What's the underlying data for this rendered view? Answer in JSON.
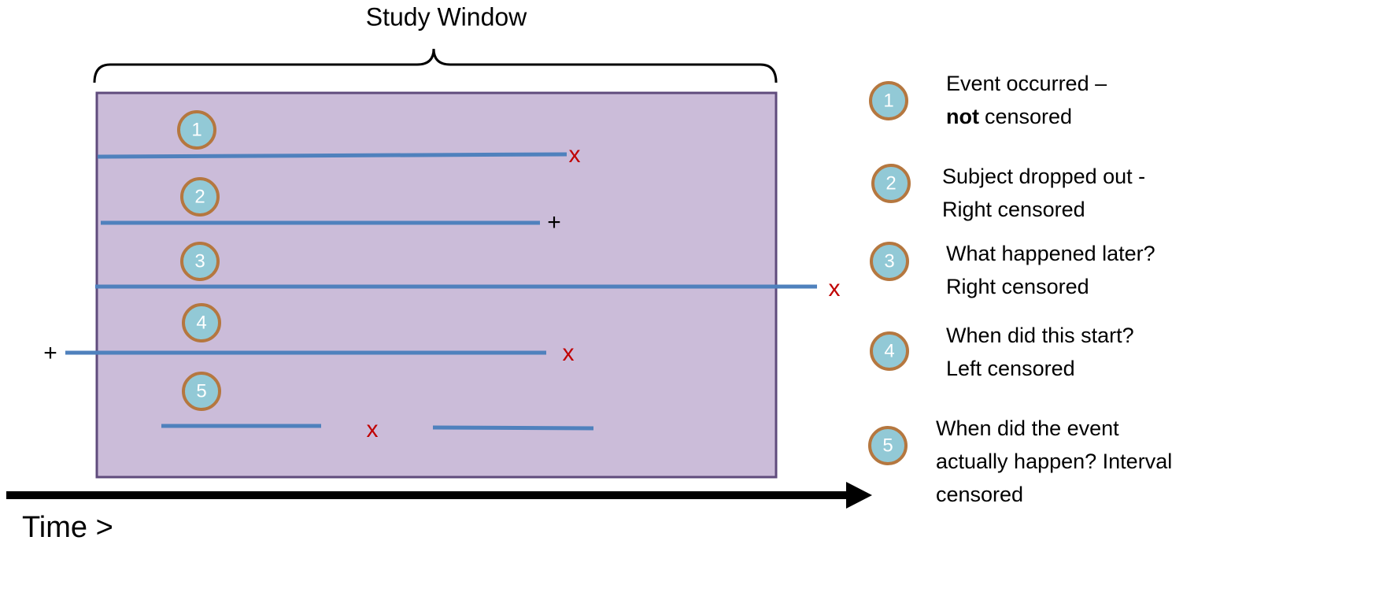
{
  "title": "Study Window",
  "timeline_label": "Time >",
  "subjects": [
    {
      "label": "1",
      "markers": [
        "x"
      ]
    },
    {
      "label": "2",
      "markers": [
        "+"
      ]
    },
    {
      "label": "3",
      "markers": [
        "x"
      ]
    },
    {
      "label": "4",
      "markers": [
        "+",
        "x"
      ]
    },
    {
      "label": "5",
      "markers": [
        "x"
      ]
    }
  ],
  "legend": [
    {
      "label": "1",
      "lines": [
        [
          {
            "text": "Event occurred –"
          }
        ],
        [
          {
            "text": "not",
            "bold": true
          },
          {
            "text": "censored"
          }
        ]
      ]
    },
    {
      "label": "2",
      "lines": [
        [
          {
            "text": "Subject dropped out -"
          }
        ],
        [
          {
            "text": "Right censored"
          }
        ]
      ]
    },
    {
      "label": "3",
      "lines": [
        [
          {
            "text": "What happened later?"
          }
        ],
        [
          {
            "text": "Right censored"
          }
        ]
      ]
    },
    {
      "label": "4",
      "lines": [
        [
          {
            "text": "When did this start?"
          }
        ],
        [
          {
            "text": "Left censored"
          }
        ]
      ]
    },
    {
      "label": "5",
      "lines": [
        [
          {
            "text": "When did the event"
          }
        ],
        [
          {
            "text": "actually happen? Interval"
          }
        ],
        [
          {
            "text": "censored"
          }
        ]
      ]
    }
  ]
}
